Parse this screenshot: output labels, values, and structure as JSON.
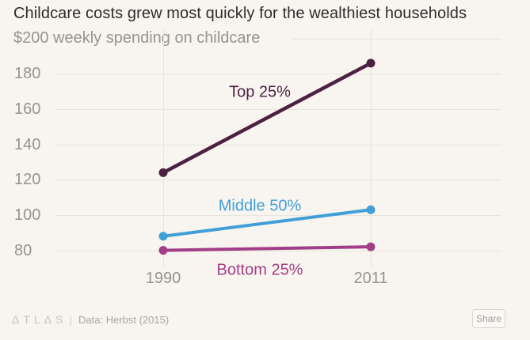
{
  "header": {
    "title": "Childcare costs grew most quickly for the wealthiest households",
    "subtitle": "$200 weekly spending on childcare"
  },
  "chart_data": {
    "type": "line",
    "title": "Childcare costs grew most quickly for the wealthiest households",
    "unit_label": "$200 weekly spending on childcare",
    "x": [
      "1990",
      "2011"
    ],
    "series": [
      {
        "name": "Top 25%",
        "values": [
          124,
          186
        ],
        "color": "#4d2142"
      },
      {
        "name": "Middle 50%",
        "values": [
          88,
          103
        ],
        "color": "#419fd7"
      },
      {
        "name": "Bottom 25%",
        "values": [
          80,
          82
        ],
        "color": "#a23e88"
      }
    ],
    "yticks": [
      200,
      180,
      160,
      140,
      120,
      100,
      80
    ],
    "ylim": [
      76,
      200
    ],
    "grid": true,
    "legend": "inline-labels",
    "ylabel": "weekly spending on childcare ($)",
    "xlabel": ""
  },
  "footer": {
    "logo": "ΔTLΔS",
    "divider": "|",
    "credit": "Data: Herbst (2015)",
    "share_label": "Share"
  }
}
